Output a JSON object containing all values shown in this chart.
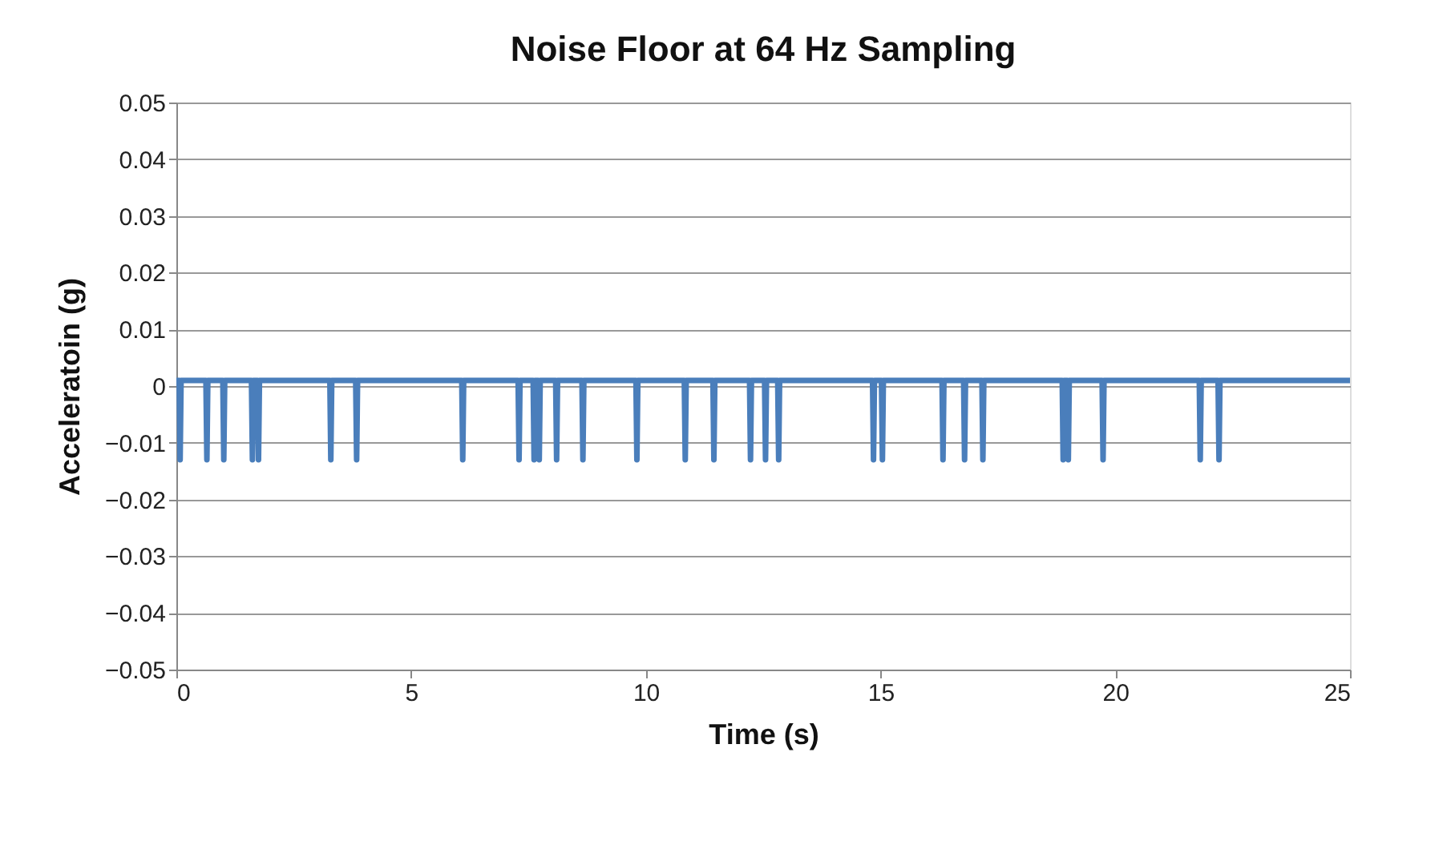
{
  "chart_data": {
    "type": "line",
    "title": "Noise Floor at 64 Hz Sampling",
    "xlabel": "Time (s)",
    "ylabel": "Acceleratoin (g)",
    "x": [
      0,
      0.06,
      0.08,
      0.1,
      0.63,
      0.65,
      0.67,
      0.99,
      1.01,
      1.03,
      1.6,
      1.62,
      1.64,
      1.73,
      1.75,
      1.77,
      3.27,
      3.29,
      3.31,
      3.82,
      3.84,
      3.86,
      6.08,
      6.1,
      6.12,
      7.28,
      7.3,
      7.32,
      7.6,
      7.62,
      7.64,
      7.71,
      7.73,
      7.75,
      8.08,
      8.1,
      8.12,
      8.64,
      8.66,
      8.68,
      9.79,
      9.81,
      9.83,
      10.82,
      10.84,
      10.86,
      11.43,
      11.45,
      11.47,
      12.21,
      12.23,
      12.25,
      12.53,
      12.55,
      12.57,
      12.81,
      12.83,
      12.85,
      14.83,
      14.85,
      14.87,
      15.02,
      15.04,
      15.06,
      16.31,
      16.33,
      16.35,
      16.77,
      16.79,
      16.81,
      17.16,
      17.18,
      17.2,
      18.87,
      18.89,
      18.91,
      18.98,
      19.0,
      19.02,
      19.72,
      19.74,
      19.76,
      21.79,
      21.81,
      21.83,
      22.19,
      22.21,
      22.23,
      25
    ],
    "series": [
      {
        "color": "#4a7ebb",
        "values": [
          0.001,
          0.001,
          -0.013,
          0.001,
          0.001,
          -0.013,
          0.001,
          0.001,
          -0.013,
          0.001,
          0.001,
          -0.013,
          0.001,
          0.001,
          -0.013,
          0.001,
          0.001,
          -0.013,
          0.001,
          0.001,
          -0.013,
          0.001,
          0.001,
          -0.013,
          0.001,
          0.001,
          -0.013,
          0.001,
          0.001,
          -0.013,
          0.001,
          0.001,
          -0.013,
          0.001,
          0.001,
          -0.013,
          0.001,
          0.001,
          -0.013,
          0.001,
          0.001,
          -0.013,
          0.001,
          0.001,
          -0.013,
          0.001,
          0.001,
          -0.013,
          0.001,
          0.001,
          -0.013,
          0.001,
          0.001,
          -0.013,
          0.001,
          0.001,
          -0.013,
          0.001,
          0.001,
          -0.013,
          0.001,
          0.001,
          -0.013,
          0.001,
          0.001,
          -0.013,
          0.001,
          0.001,
          -0.013,
          0.001,
          0.001,
          -0.013,
          0.001,
          0.001,
          -0.013,
          0.001,
          0.001,
          -0.013,
          0.001,
          0.001,
          -0.013,
          0.001,
          0.001,
          -0.013,
          0.001,
          0.001,
          -0.013,
          0.001,
          0.001
        ]
      }
    ],
    "xlim": [
      0,
      25
    ],
    "xticks": [
      0,
      5,
      10,
      15,
      20,
      25
    ],
    "ylim": [
      -0.05,
      0.05
    ],
    "yticks": [
      -0.05,
      -0.04,
      -0.03,
      -0.02,
      -0.01,
      0,
      0.01,
      0.02,
      0.03,
      0.04,
      0.05
    ],
    "grid": "y",
    "marker": "none",
    "line_style": "solid"
  }
}
